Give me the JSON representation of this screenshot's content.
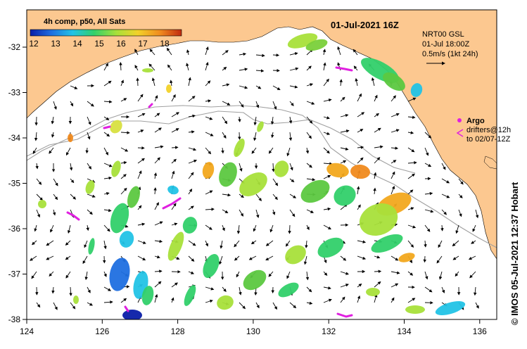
{
  "colorbar": {
    "title": "4h comp, p50, All Sats",
    "ticks": [
      "12",
      "13",
      "14",
      "15",
      "16",
      "17",
      "18"
    ],
    "colors": [
      "#0a1ea8",
      "#1f6fe0",
      "#22c3e6",
      "#32d06a",
      "#a8e03a",
      "#f2d22a",
      "#f08a1e",
      "#c02a10"
    ]
  },
  "map_title": "01-Jul-2021 16Z",
  "legend": {
    "line1": "NRT00 GSL",
    "line2": "01-Jul 18:00Z",
    "line3": "0.5m/s (1kt 24h)"
  },
  "argo": {
    "label": "Argo",
    "line2": "drifters@12h",
    "line3": "to 02/07-12Z",
    "color": "#e020e0"
  },
  "credit": "© IMOS 05-Jul-2021 12:37 Hobart",
  "axes": {
    "x_ticks": [
      "124",
      "126",
      "128",
      "130",
      "132",
      "134",
      "136"
    ],
    "y_ticks": [
      "-32",
      "-33",
      "-34",
      "-35",
      "-36",
      "-37",
      "-38"
    ]
  },
  "colors": {
    "land": "#fcc890",
    "sea": "#ffffff",
    "contour": "#a0a0a0"
  }
}
